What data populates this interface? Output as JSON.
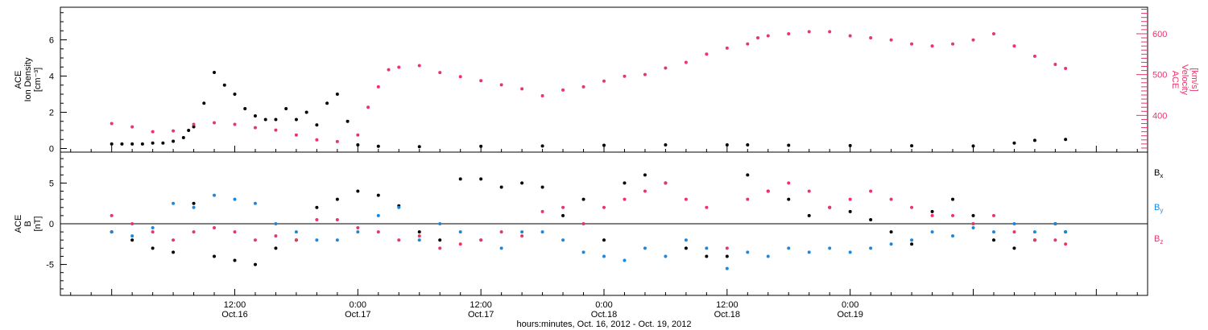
{
  "colors": {
    "black": "#000000",
    "red": "#e8356a",
    "blue": "#1a88e0"
  },
  "chart_data": [
    {
      "type": "scatter",
      "panel": "top",
      "ylabel_left": [
        "ACE",
        "Ion Density"
      ],
      "ylabel_left_unit": "[cm⁻³]",
      "ylabel_right": [
        "ACE",
        "Velocity"
      ],
      "ylabel_right_unit": "[km/s]",
      "ylim_left": [
        -0.2,
        7.8
      ],
      "ylim_right": [
        310,
        665
      ],
      "yticks_left": [
        "0",
        "2",
        "4",
        "6"
      ],
      "yticks_right": [
        "400",
        "500",
        "600"
      ],
      "series": [
        {
          "axis": "left",
          "color": "#000000",
          "x": [
            0,
            1,
            2,
            3,
            4,
            5,
            6,
            7,
            7.5,
            8,
            9,
            10,
            11,
            12,
            13,
            14,
            15,
            16,
            17,
            18,
            19,
            20,
            21,
            22,
            23,
            24,
            26,
            30,
            36,
            42,
            48,
            54,
            60,
            62,
            66,
            72,
            78,
            84,
            88,
            90,
            93
          ],
          "y": [
            0.25,
            0.25,
            0.25,
            0.25,
            0.3,
            0.3,
            0.4,
            0.6,
            1,
            1.2,
            2.5,
            4.2,
            3.5,
            3,
            2.2,
            1.8,
            1.6,
            1.6,
            2.2,
            1.6,
            2,
            1.3,
            2.5,
            3,
            1.5,
            0.2,
            0.12,
            0.1,
            0.12,
            0.14,
            0.18,
            0.2,
            0.2,
            0.2,
            0.18,
            0.16,
            0.15,
            0.14,
            0.3,
            0.45,
            0.5
          ]
        },
        {
          "axis": "right",
          "color": "#e8356a",
          "x": [
            0,
            2,
            4,
            6,
            8,
            10,
            12,
            14,
            16,
            18,
            20,
            22,
            24,
            25,
            26,
            27,
            28,
            30,
            32,
            34,
            36,
            38,
            40,
            42,
            44,
            46,
            48,
            50,
            52,
            54,
            56,
            58,
            60,
            62,
            63,
            64,
            66,
            68,
            70,
            72,
            74,
            76,
            78,
            80,
            82,
            84,
            86,
            88,
            90,
            92,
            93
          ],
          "y": [
            380,
            372,
            360,
            362,
            378,
            382,
            378,
            370,
            364,
            352,
            340,
            336,
            352,
            420,
            470,
            512,
            518,
            522,
            505,
            495,
            485,
            475,
            465,
            448,
            462,
            470,
            484,
            496,
            500,
            516,
            530,
            550,
            565,
            575,
            590,
            595,
            600,
            605,
            605,
            595,
            590,
            585,
            575,
            570,
            575,
            585,
            600,
            570,
            545,
            525,
            515
          ]
        }
      ]
    },
    {
      "type": "scatter",
      "panel": "bottom",
      "ylabel_left": [
        "ACE",
        "B"
      ],
      "ylabel_left_unit": "[nT]",
      "ylim": [
        -8.8,
        8.8
      ],
      "yticks": [
        "-5",
        "0",
        "5"
      ],
      "series": [
        {
          "name": "Bx",
          "color": "#000000",
          "x": [
            0,
            2,
            4,
            6,
            8,
            10,
            12,
            14,
            16,
            18,
            20,
            22,
            24,
            26,
            28,
            30,
            32,
            34,
            36,
            38,
            40,
            42,
            44,
            46,
            48,
            50,
            52,
            54,
            56,
            58,
            60,
            62,
            64,
            66,
            68,
            70,
            72,
            74,
            76,
            78,
            80,
            82,
            84,
            86,
            88,
            90,
            92,
            93
          ],
          "y": [
            -1,
            -2,
            -3,
            -3.5,
            2.5,
            -4,
            -4.5,
            -5,
            -3,
            -2,
            2,
            3,
            4,
            3.5,
            2.2,
            -1,
            -2,
            5.5,
            5.5,
            4.5,
            5,
            4.5,
            1,
            3,
            -2,
            5,
            6,
            5,
            -3,
            -4,
            -4,
            6,
            4,
            3,
            1,
            2,
            1.5,
            0.5,
            -1,
            -2.5,
            1.5,
            3,
            1,
            -2,
            -3,
            -2,
            0,
            -1
          ]
        },
        {
          "name": "By",
          "color": "#1a88e0",
          "x": [
            0,
            2,
            4,
            6,
            8,
            10,
            12,
            14,
            16,
            18,
            20,
            22,
            24,
            26,
            28,
            30,
            32,
            34,
            36,
            38,
            40,
            42,
            44,
            46,
            48,
            50,
            52,
            54,
            56,
            58,
            60,
            62,
            64,
            66,
            68,
            70,
            72,
            74,
            76,
            78,
            80,
            82,
            84,
            86,
            88,
            90,
            92,
            93
          ],
          "y": [
            -1,
            -1.5,
            -0.5,
            2.5,
            2,
            3.5,
            3,
            2.5,
            0,
            -1,
            -2,
            -2,
            -1,
            1,
            2,
            -2,
            0,
            -1,
            -2,
            -3,
            -1,
            -1,
            -2,
            -3.5,
            -4,
            -4.5,
            -3,
            -4,
            -2,
            -3,
            -5.5,
            -3.5,
            -4,
            -3,
            -3.5,
            -3,
            -3.5,
            -3,
            -2.5,
            -2,
            -1,
            -1.5,
            -0.5,
            -1,
            0,
            -1,
            0,
            -1
          ]
        },
        {
          "name": "Bz",
          "color": "#e8356a",
          "x": [
            0,
            2,
            4,
            6,
            8,
            10,
            12,
            14,
            16,
            18,
            20,
            22,
            24,
            26,
            28,
            30,
            32,
            34,
            36,
            38,
            40,
            42,
            44,
            46,
            48,
            50,
            52,
            54,
            56,
            58,
            60,
            62,
            64,
            66,
            68,
            70,
            72,
            74,
            76,
            78,
            80,
            82,
            84,
            86,
            88,
            90,
            92,
            93
          ],
          "y": [
            1,
            0,
            -1,
            -2,
            -1,
            -0.5,
            -1,
            -2,
            -1.5,
            -2,
            0.5,
            0.5,
            -0.5,
            -1,
            -2,
            -1.5,
            -3,
            -2.5,
            -2,
            -1,
            -1.5,
            1.5,
            2,
            0,
            2,
            3,
            4,
            5,
            3,
            2,
            -3,
            3,
            4,
            5,
            4,
            2,
            3,
            4,
            3,
            2,
            1,
            1,
            0,
            1,
            -1,
            -2,
            -2,
            -2.5
          ]
        }
      ],
      "legend": [
        "Bx",
        "By",
        "Bz"
      ],
      "legend_placement": "right"
    }
  ],
  "xaxis": {
    "xlim": [
      -5,
      101
    ],
    "major_ticks": [
      {
        "x": 12,
        "line1": "12:00",
        "line2": "Oct.16"
      },
      {
        "x": 24,
        "line1": "0:00",
        "line2": "Oct.17"
      },
      {
        "x": 36,
        "line1": "12:00",
        "line2": "Oct.17"
      },
      {
        "x": 48,
        "line1": "0:00",
        "line2": "Oct.18"
      },
      {
        "x": 60,
        "line1": "12:00",
        "line2": "Oct.18"
      },
      {
        "x": 72,
        "line1": "0:00",
        "line2": "Oct.19"
      }
    ],
    "title": "hours:minutes, Oct. 16, 2012 - Oct. 19, 2012"
  },
  "legend_labels": {
    "bx_main": "B",
    "bx_sub": "x",
    "by_main": "B",
    "by_sub": "y",
    "bz_main": "B",
    "bz_sub": "z"
  },
  "labels": {
    "top_left_1": "ACE",
    "top_left_2": "Ion Density",
    "top_left_unit": "[cm⁻³]",
    "top_right_1": "ACE",
    "top_right_2": "Velocity",
    "top_right_unit": "[km/s]",
    "bot_left_1": "ACE",
    "bot_left_2": "B",
    "bot_left_unit": "[nT]"
  }
}
